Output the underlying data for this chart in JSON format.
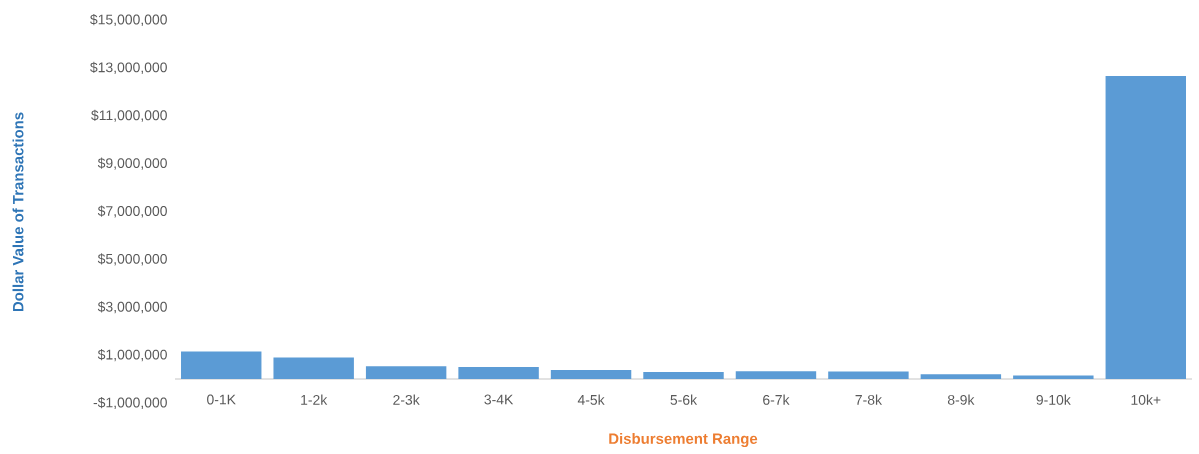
{
  "chart_data": {
    "type": "bar",
    "xlabel": "Disbursement Range",
    "ylabel": "Dollar Value of Transactions",
    "categories": [
      "0-1K",
      "1-2k",
      "2-3k",
      "3-4K",
      "4-5k",
      "5-6k",
      "6-7k",
      "7-8k",
      "8-9k",
      "9-10k",
      "10k+"
    ],
    "values": [
      1150000,
      900000,
      540000,
      500000,
      380000,
      290000,
      330000,
      320000,
      200000,
      150000,
      12660000
    ],
    "color": "#5b9bd5",
    "ylim": [
      -1000000,
      15000000
    ],
    "yticks": [
      {
        "value": -1000000,
        "label": "-$1,000,000"
      },
      {
        "value": 1000000,
        "label": "$1,000,000"
      },
      {
        "value": 3000000,
        "label": "$3,000,000"
      },
      {
        "value": 5000000,
        "label": "$5,000,000"
      },
      {
        "value": 7000000,
        "label": "$7,000,000"
      },
      {
        "value": 9000000,
        "label": "$9,000,000"
      },
      {
        "value": 11000000,
        "label": "$11,000,000"
      },
      {
        "value": 13000000,
        "label": "$13,000,000"
      },
      {
        "value": 15000000,
        "label": "$15,000,000"
      }
    ],
    "grid": false
  }
}
